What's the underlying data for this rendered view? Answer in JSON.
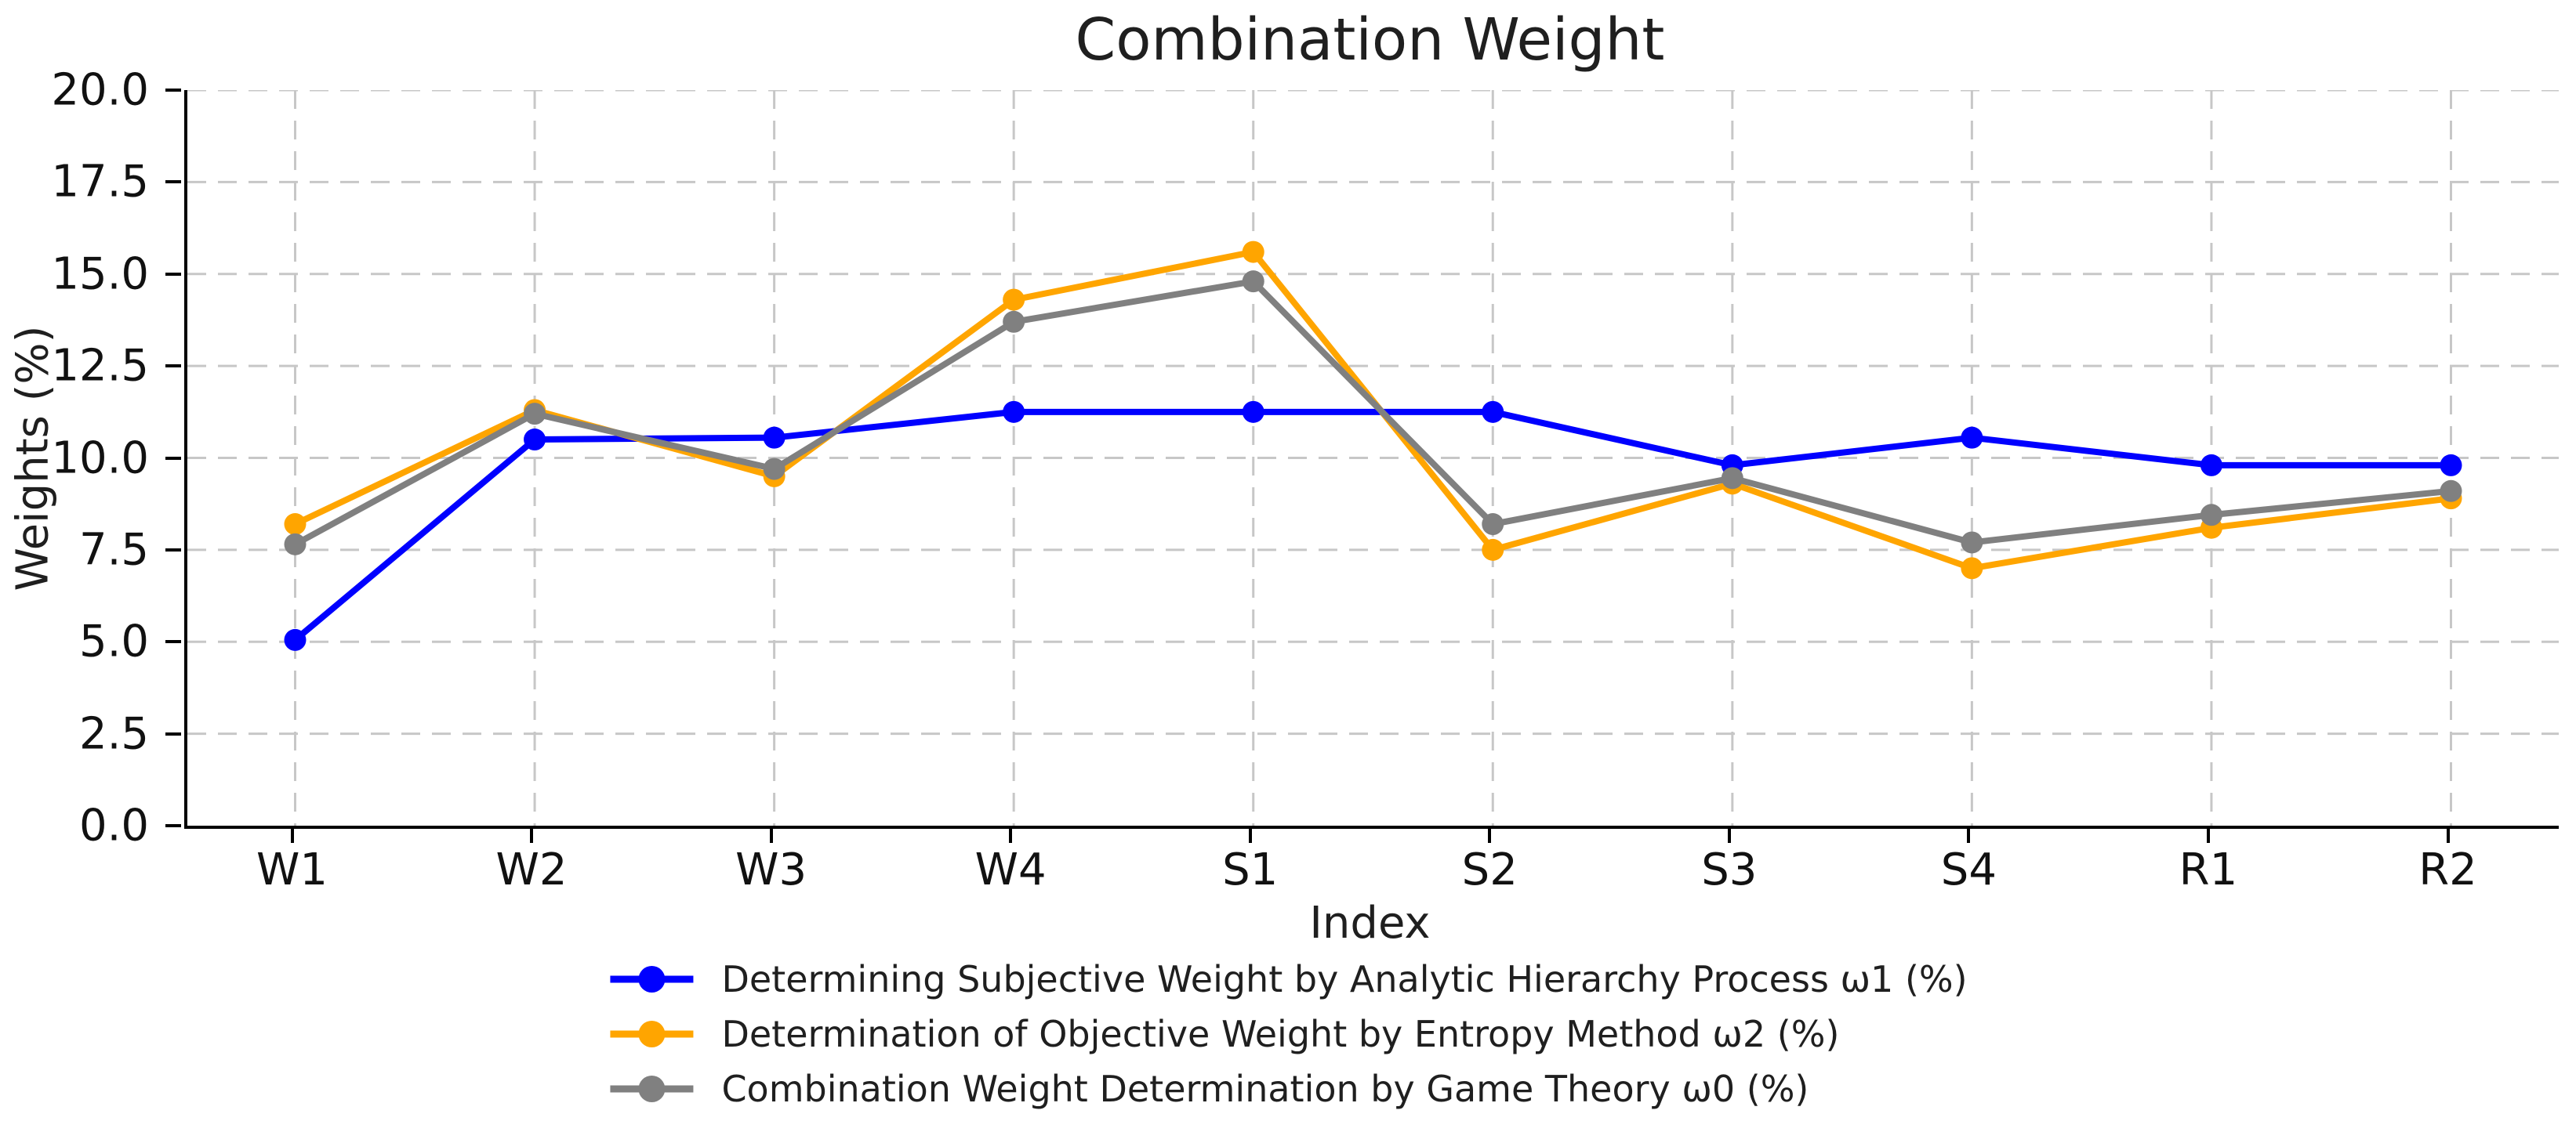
{
  "chart_data": {
    "type": "line",
    "title": "Combination Weight",
    "xlabel": "Index",
    "ylabel": "Weights (%)",
    "categories": [
      "W1",
      "W2",
      "W3",
      "W4",
      "S1",
      "S2",
      "S3",
      "S4",
      "R1",
      "R2"
    ],
    "y_tick_labels": [
      "0.0",
      "2.5",
      "5.0",
      "7.5",
      "10.0",
      "12.5",
      "15.0",
      "17.5",
      "20.0"
    ],
    "ylim": [
      0,
      20
    ],
    "grid": "dashed gray gridlines on both axes",
    "legend_position": "bottom center, below x-axis label",
    "colors": {
      "grid": "#c7c7c7",
      "axis": "#000000",
      "text": "#1f1f1f"
    },
    "series": [
      {
        "name": "Determining Subjective Weight by Analytic Hierarchy Process ω1  (%)",
        "color": "#0000FF",
        "values": [
          5.05,
          10.5,
          10.55,
          11.25,
          11.25,
          11.25,
          9.8,
          10.55,
          9.8,
          9.8
        ]
      },
      {
        "name": "Determination of Objective Weight by Entropy Method ω2  (%)",
        "color": "#FFA500",
        "values": [
          8.2,
          11.3,
          9.5,
          14.3,
          15.6,
          7.5,
          9.3,
          7.0,
          8.1,
          8.9
        ]
      },
      {
        "name": "Combination Weight Determination by Game Theory ω0  (%)",
        "color": "#808080",
        "values": [
          7.65,
          11.2,
          9.7,
          13.7,
          14.8,
          8.2,
          9.45,
          7.7,
          8.45,
          9.1
        ]
      }
    ]
  }
}
